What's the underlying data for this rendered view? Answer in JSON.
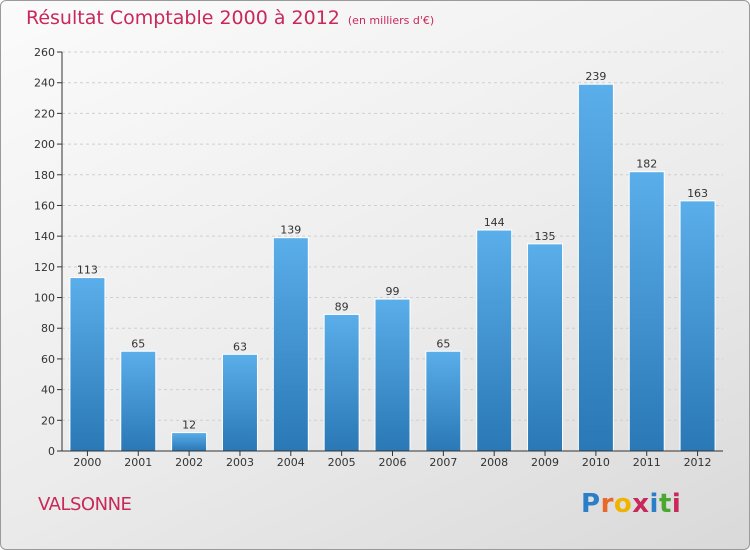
{
  "header": {
    "title": "Résultat Comptable 2000 à 2012",
    "unit_note": "(en milliers d'€)"
  },
  "footer": {
    "commune": "VALSONNE",
    "logo_letters": [
      "P",
      "r",
      "o",
      "x",
      "i",
      "t",
      "i"
    ],
    "logo_colors": [
      "#2a7fc8",
      "#e8672a",
      "#f0b400",
      "#c8285a",
      "#2a7fc8",
      "#4aa832",
      "#c8285a"
    ]
  },
  "colors": {
    "bar_light": "#5aaeea",
    "bar_dark": "#2a78b6",
    "axis": "#333333",
    "grid": "#cfcfcf",
    "title": "#c8285a"
  },
  "chart_data": {
    "type": "bar",
    "title": "Résultat Comptable 2000 à 2012",
    "subtitle": "(en milliers d'€)",
    "xlabel": "",
    "ylabel": "",
    "categories": [
      "2000",
      "2001",
      "2002",
      "2003",
      "2004",
      "2005",
      "2006",
      "2007",
      "2008",
      "2009",
      "2010",
      "2011",
      "2012"
    ],
    "values": [
      113,
      65,
      12,
      63,
      139,
      89,
      99,
      65,
      144,
      135,
      239,
      182,
      163
    ],
    "ylim": [
      0,
      260
    ],
    "yticks": [
      0,
      20,
      40,
      60,
      80,
      100,
      120,
      140,
      160,
      180,
      200,
      220,
      240,
      260
    ],
    "grid": "horizontal-dashed"
  }
}
